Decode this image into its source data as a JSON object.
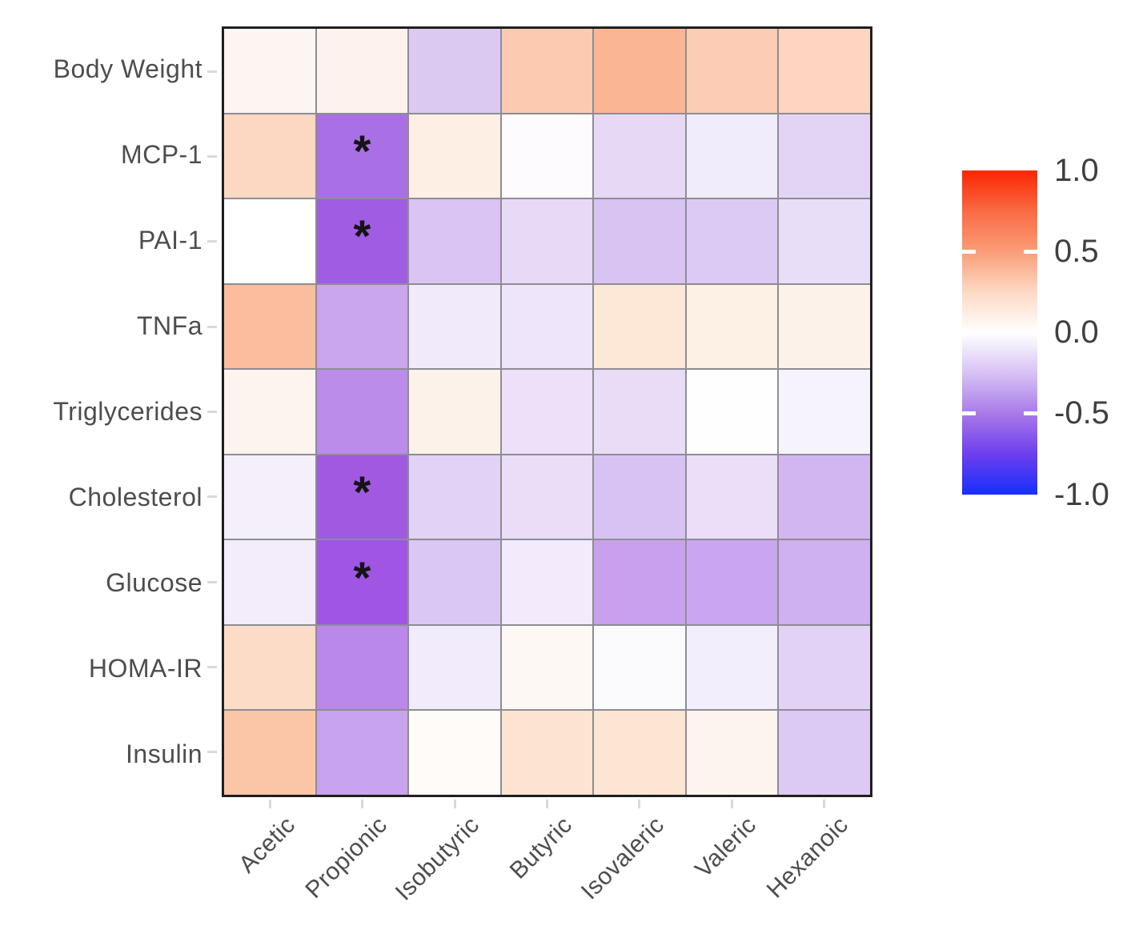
{
  "figure": {
    "background": "#ffffff",
    "plot_border_color": "#1f1f1f",
    "gridline_color": "#8d8d93",
    "axis_tick_color": "#d9d9d9",
    "axis_label_color": "#4d4d4d",
    "legend_label_color": "#3f3f3f"
  },
  "chart_data": {
    "type": "heatmap",
    "title": "",
    "xlabel": "",
    "ylabel": "",
    "x_axis": {
      "categories": [
        "Acetic",
        "Propionic",
        "Isobutyric",
        "Butyric",
        "Isovaleric",
        "Valeric",
        "Hexanoic"
      ],
      "label_rotation_deg": 45
    },
    "y_axis": {
      "categories": [
        "Body Weight",
        "MCP-1",
        "PAI-1",
        "TNFa",
        "Triglycerides",
        "Cholesterol",
        "Glucose",
        "HOMA-IR",
        "Insulin"
      ]
    },
    "values": [
      [
        0.05,
        0.06,
        -0.23,
        0.32,
        0.42,
        0.3,
        0.25
      ],
      [
        0.25,
        -0.56,
        0.1,
        -0.02,
        -0.16,
        -0.08,
        -0.18
      ],
      [
        0.0,
        -0.62,
        -0.25,
        -0.16,
        -0.26,
        -0.23,
        -0.14
      ],
      [
        0.4,
        -0.35,
        -0.09,
        -0.11,
        0.15,
        0.09,
        0.08
      ],
      [
        0.07,
        -0.45,
        0.08,
        -0.13,
        -0.15,
        0.0,
        -0.05
      ],
      [
        -0.07,
        -0.63,
        -0.19,
        -0.15,
        -0.27,
        -0.13,
        -0.31
      ],
      [
        -0.08,
        -0.64,
        -0.24,
        -0.09,
        -0.37,
        -0.35,
        -0.32
      ],
      [
        0.22,
        -0.46,
        -0.08,
        0.03,
        -0.02,
        -0.06,
        -0.19
      ],
      [
        0.34,
        -0.36,
        0.02,
        0.18,
        0.17,
        0.06,
        -0.22
      ]
    ],
    "cell_colors": [
      [
        "#fdf5f2",
        "#fdf3ec",
        "#dcc9f2",
        "#fccab0",
        "#fab694",
        "#fcccb4",
        "#fdd5c0"
      ],
      [
        "#fcd7c1",
        "#a96fe4",
        "#fdefe4",
        "#fdfbfe",
        "#e7d9f6",
        "#f1ecfb",
        "#e3d4f6"
      ],
      [
        "#ffffff",
        "#a05ce2",
        "#d9c4f3",
        "#e7daf7",
        "#d8c3f3",
        "#dccaf4",
        "#e9def8"
      ],
      [
        "#fbbd9e",
        "#c9a6ee",
        "#f1eafb",
        "#eee5fa",
        "#fde8d8",
        "#fdf0e5",
        "#fdf2ea"
      ],
      [
        "#fdf4ed",
        "#bb8cea",
        "#fdf2e9",
        "#ece1f9",
        "#e9dcf7",
        "#fefeff",
        "#f7f3fd"
      ],
      [
        "#f5effc",
        "#a159e2",
        "#e2d2f6",
        "#e9ddf8",
        "#d8c2f3",
        "#eadef8",
        "#d2b6f1"
      ],
      [
        "#f3ecfb",
        "#a055e3",
        "#dbc7f4",
        "#f3eafb",
        "#c7a1ee",
        "#c9a6ef",
        "#cfb0f0"
      ],
      [
        "#fcdcc7",
        "#b988ea",
        "#f1ebfb",
        "#fdf8f3",
        "#fbfafd",
        "#f3eefc",
        "#e2d2f6"
      ],
      [
        "#fbc5a7",
        "#c8a4ef",
        "#fefbf8",
        "#fce4d0",
        "#fde5d3",
        "#fef4ee",
        "#dccaf4"
      ]
    ],
    "significance_marker": "*",
    "significant_cells": [
      {
        "row": "MCP-1",
        "col": "Propionic"
      },
      {
        "row": "PAI-1",
        "col": "Propionic"
      },
      {
        "row": "Cholesterol",
        "col": "Propionic"
      },
      {
        "row": "Glucose",
        "col": "Propionic"
      }
    ],
    "colorbar": {
      "position": "right",
      "range": [
        -1.0,
        1.0
      ],
      "tick_labels": [
        "1.0",
        "0.5",
        "0.0",
        "-0.5",
        "-1.0"
      ],
      "tick_values": [
        1.0,
        0.5,
        0.0,
        -0.5,
        -1.0
      ],
      "notch_values": [
        0.5,
        -0.5
      ],
      "gradient_stops": [
        {
          "value": 1.0,
          "color": "#fa2502"
        },
        {
          "value": 0.75,
          "color": "#fa6a43"
        },
        {
          "value": 0.5,
          "color": "#fa9d78"
        },
        {
          "value": 0.25,
          "color": "#fdd9c4"
        },
        {
          "value": 0.0,
          "color": "#ffffff"
        },
        {
          "value": -0.25,
          "color": "#d7c2f4"
        },
        {
          "value": -0.5,
          "color": "#a87ae8"
        },
        {
          "value": -0.75,
          "color": "#6e3eee"
        },
        {
          "value": -1.0,
          "color": "#1530fb"
        }
      ]
    },
    "grid_on": true
  }
}
